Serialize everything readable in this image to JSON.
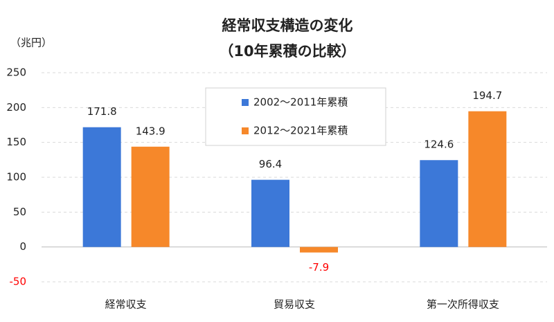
{
  "chart_data": {
    "type": "bar",
    "title": "経常収支構造の変化",
    "subtitle": "（10年累積の比較）",
    "y_axis_label": "（兆円）",
    "categories": [
      "経常収支",
      "貿易収支",
      "第一次所得収支"
    ],
    "series": [
      {
        "name": "2002～2011年累積",
        "color": "#3c78d8",
        "values": [
          171.8,
          96.4,
          124.6
        ]
      },
      {
        "name": "2012～2021年累積",
        "color": "#f6882a",
        "values": [
          143.9,
          -7.9,
          194.7
        ]
      }
    ],
    "ylim": [
      -50,
      250
    ],
    "yticks": [
      -50,
      0,
      50,
      100,
      150,
      200,
      250
    ],
    "grid": true,
    "negative_color": "#ff0000",
    "legend": "top-center"
  }
}
